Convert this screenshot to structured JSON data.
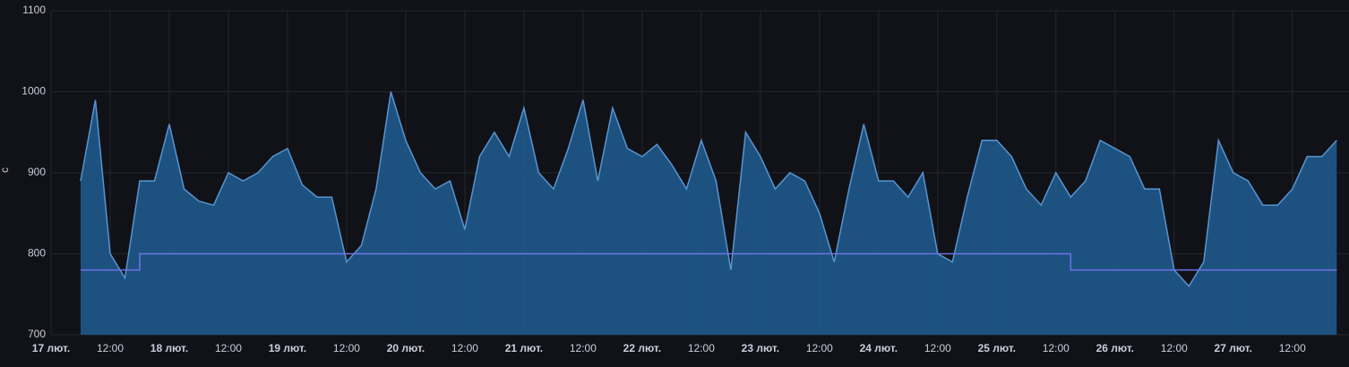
{
  "chart_data": {
    "type": "area",
    "y_label": "с",
    "x": [
      "17 лют. 06:00",
      "17 лют. 09:00",
      "17 лют. 12:00",
      "17 лют. 15:00",
      "17 лют. 18:00",
      "17 лют. 21:00",
      "18 лют. 00:00",
      "18 лют. 03:00",
      "18 лют. 06:00",
      "18 лют. 09:00",
      "18 лют. 12:00",
      "18 лют. 15:00",
      "18 лют. 18:00",
      "18 лют. 21:00",
      "19 лют. 00:00",
      "19 лют. 03:00",
      "19 лют. 06:00",
      "19 лют. 09:00",
      "19 лют. 12:00",
      "19 лют. 15:00",
      "19 лют. 18:00",
      "19 лют. 21:00",
      "20 лют. 00:00",
      "20 лют. 03:00",
      "20 лют. 06:00",
      "20 лют. 09:00",
      "20 лют. 12:00",
      "20 лют. 15:00",
      "20 лют. 18:00",
      "20 лют. 21:00",
      "21 лют. 00:00",
      "21 лют. 03:00",
      "21 лют. 06:00",
      "21 лют. 09:00",
      "21 лют. 12:00",
      "21 лют. 15:00",
      "21 лют. 18:00",
      "21 лют. 21:00",
      "22 лют. 00:00",
      "22 лют. 03:00",
      "22 лют. 06:00",
      "22 лют. 09:00",
      "22 лют. 12:00",
      "22 лют. 15:00",
      "22 лют. 18:00",
      "22 лют. 21:00",
      "23 лют. 00:00",
      "23 лют. 03:00",
      "23 лют. 06:00",
      "23 лют. 09:00",
      "23 лют. 12:00",
      "23 лют. 15:00",
      "23 лют. 18:00",
      "23 лют. 21:00",
      "24 лют. 00:00",
      "24 лют. 03:00",
      "24 лют. 06:00",
      "24 лют. 09:00",
      "24 лют. 12:00",
      "24 лют. 15:00",
      "24 лют. 18:00",
      "24 лют. 21:00",
      "25 лют. 00:00",
      "25 лют. 03:00",
      "25 лют. 06:00",
      "25 лют. 09:00",
      "25 лют. 12:00",
      "25 лют. 15:00",
      "25 лют. 18:00",
      "25 лют. 21:00",
      "26 лют. 00:00",
      "26 лют. 03:00",
      "26 лют. 06:00",
      "26 лют. 09:00",
      "26 лют. 12:00",
      "26 лют. 15:00",
      "26 лют. 18:00",
      "26 лют. 21:00",
      "27 лют. 00:00",
      "27 лют. 03:00",
      "27 лют. 06:00",
      "27 лют. 09:00",
      "27 лют. 12:00",
      "27 лют. 15:00",
      "27 лют. 18:00",
      "27 лют. 21:00"
    ],
    "series": [
      {
        "color": "#5794d2",
        "fill": "#1f5a8c",
        "values": [
          890,
          990,
          800,
          770,
          890,
          890,
          960,
          880,
          865,
          860,
          900,
          890,
          900,
          920,
          930,
          885,
          870,
          870,
          790,
          810,
          880,
          1000,
          940,
          900,
          880,
          890,
          830,
          920,
          950,
          920,
          980,
          900,
          880,
          930,
          990,
          890,
          980,
          930,
          920,
          935,
          910,
          880,
          940,
          890,
          780,
          950,
          920,
          880,
          900,
          890,
          850,
          790,
          880,
          960,
          890,
          890,
          870,
          900,
          800,
          790,
          870,
          940,
          940,
          920,
          880,
          860,
          900,
          870,
          890,
          940,
          930,
          920,
          880,
          880,
          780,
          760,
          790,
          940,
          900,
          890,
          860,
          860,
          880,
          920,
          920,
          940
        ]
      },
      {
        "color": "#6e73e6",
        "step": true,
        "values": [
          780,
          780,
          780,
          780,
          800,
          800,
          800,
          800,
          800,
          800,
          800,
          800,
          800,
          800,
          800,
          800,
          800,
          800,
          800,
          800,
          800,
          800,
          800,
          800,
          800,
          800,
          800,
          800,
          800,
          800,
          800,
          800,
          800,
          800,
          800,
          800,
          800,
          800,
          800,
          800,
          800,
          800,
          800,
          800,
          800,
          800,
          800,
          800,
          800,
          800,
          800,
          800,
          800,
          800,
          800,
          800,
          800,
          800,
          800,
          800,
          800,
          800,
          800,
          800,
          800,
          800,
          800,
          780,
          780,
          780,
          780,
          780,
          780,
          780,
          780,
          780,
          780,
          780,
          780,
          780,
          780,
          780,
          780,
          780,
          780,
          780
        ]
      }
    ],
    "xlim": [
      "17 лют. 00:00",
      "27 лют. 23:30"
    ],
    "xticks": [
      {
        "value": "17 лют. 00:00",
        "label": "17 лют."
      },
      {
        "value": "17 лют. 12:00",
        "label": "12:00"
      },
      {
        "value": "18 лют. 00:00",
        "label": "18 лют."
      },
      {
        "value": "18 лют. 12:00",
        "label": "12:00"
      },
      {
        "value": "19 лют. 00:00",
        "label": "19 лют."
      },
      {
        "value": "19 лют. 12:00",
        "label": "12:00"
      },
      {
        "value": "20 лют. 00:00",
        "label": "20 лют."
      },
      {
        "value": "20 лют. 12:00",
        "label": "12:00"
      },
      {
        "value": "21 лют. 00:00",
        "label": "21 лют."
      },
      {
        "value": "21 лют. 12:00",
        "label": "12:00"
      },
      {
        "value": "22 лют. 00:00",
        "label": "22 лют."
      },
      {
        "value": "22 лют. 12:00",
        "label": "12:00"
      },
      {
        "value": "23 лют. 00:00",
        "label": "23 лют."
      },
      {
        "value": "23 лют. 12:00",
        "label": "12:00"
      },
      {
        "value": "24 лют. 00:00",
        "label": "24 лют."
      },
      {
        "value": "24 лют. 12:00",
        "label": "12:00"
      },
      {
        "value": "25 лют. 00:00",
        "label": "25 лют."
      },
      {
        "value": "25 лют. 12:00",
        "label": "12:00"
      },
      {
        "value": "26 лют. 00:00",
        "label": "26 лют."
      },
      {
        "value": "26 лют. 12:00",
        "label": "12:00"
      },
      {
        "value": "27 лют. 00:00",
        "label": "27 лют."
      },
      {
        "value": "27 лют. 12:00",
        "label": "12:00"
      }
    ],
    "ylim": [
      700,
      1100
    ],
    "yticks": [
      700,
      800,
      900,
      1000,
      1100
    ],
    "grid": true
  }
}
